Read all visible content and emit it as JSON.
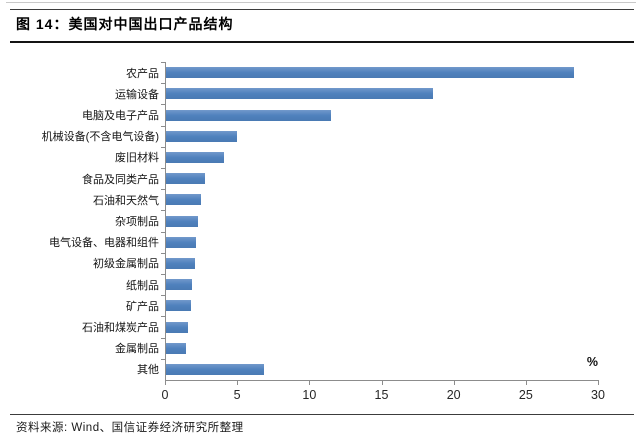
{
  "header": {
    "title": "图 14：美国对中国出口产品结构"
  },
  "chart_data": {
    "type": "bar",
    "orientation": "horizontal",
    "title": "美国对中国出口产品结构",
    "figure_label": "图 14",
    "categories": [
      "农产品",
      "运输设备",
      "电脑及电子产品",
      "机械设备(不含电气设备)",
      "废旧材料",
      "食品及同类产品",
      "石油和天然气",
      "杂项制品",
      "电气设备、电器和组件",
      "初级金属制品",
      "纸制品",
      "矿产品",
      "石油和煤炭产品",
      "金属制品",
      "其他"
    ],
    "values": [
      28.3,
      18.5,
      11.4,
      4.9,
      4.0,
      2.7,
      2.4,
      2.2,
      2.1,
      2.0,
      1.8,
      1.7,
      1.5,
      1.4,
      6.8
    ],
    "xlabel": "%",
    "ylabel": "",
    "xlim": [
      0,
      30
    ],
    "xticks": [
      0,
      5,
      10,
      15,
      20,
      25,
      30
    ],
    "grid": false,
    "legend": "none",
    "bar_color": "#4f81bd",
    "axis_color": "#8c8c8c"
  },
  "footer": {
    "source": "资料来源: Wind、国信证券经济研究所整理"
  }
}
